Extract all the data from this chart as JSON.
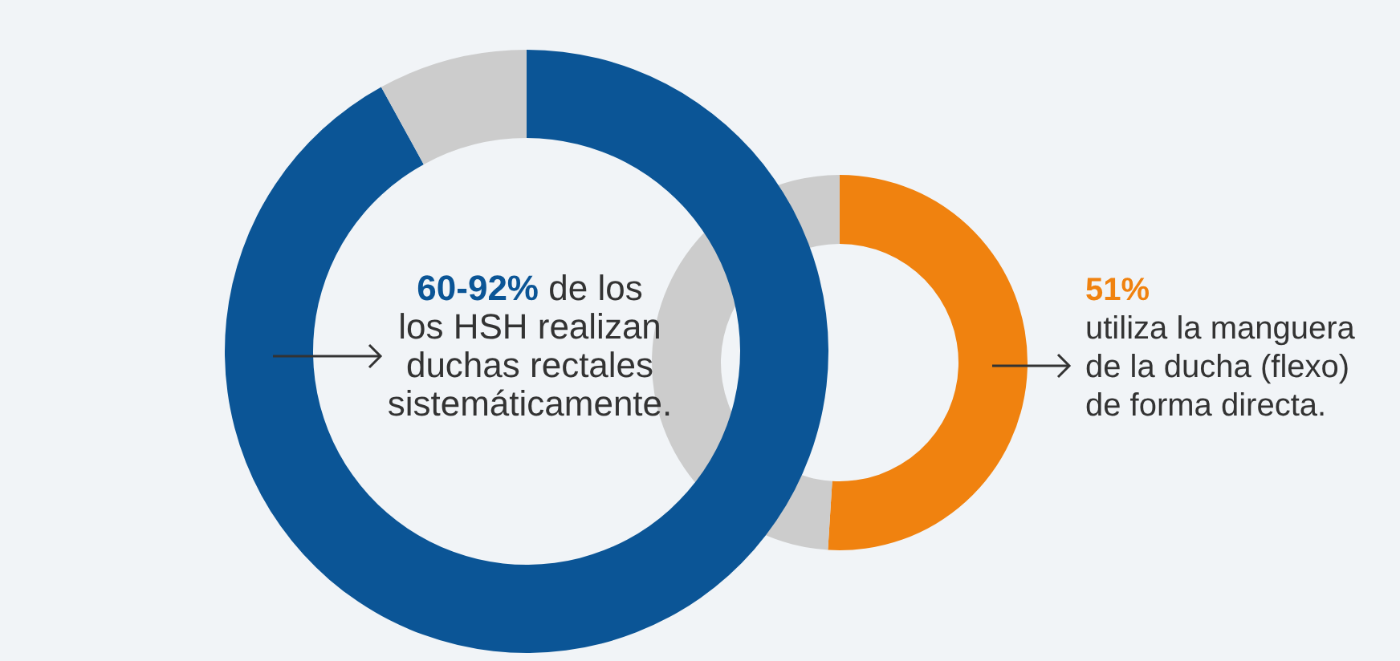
{
  "chart_data": [
    {
      "type": "donut",
      "categories": [
        null,
        null
      ],
      "values": [
        92,
        8
      ],
      "colors": [
        "#0b5596",
        "#cccccc"
      ],
      "annotations": [
        "60-92% de los\nlos HSH realizan\nduchas rectales\nsistemáticamente."
      ]
    },
    {
      "type": "donut",
      "categories": [
        null,
        null
      ],
      "values": [
        51,
        49
      ],
      "colors": [
        "#f0820f",
        "#cccccc"
      ],
      "annotations": [
        "51%\nutiliza la manguera\nde la ducha (flexo)\nde forma directa."
      ]
    }
  ]
}
